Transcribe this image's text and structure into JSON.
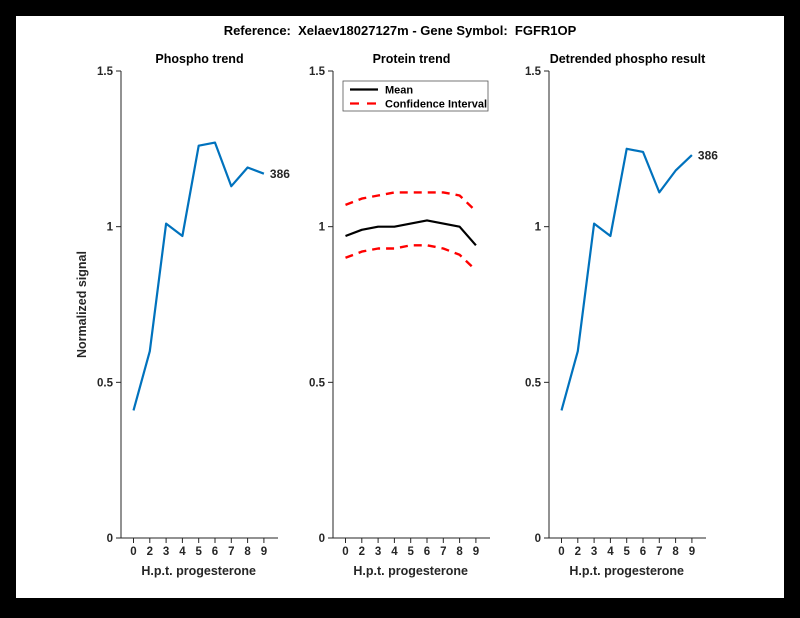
{
  "header": {
    "title": "Reference:  Xelaev18027127m - Gene Symbol:  FGFR1OP"
  },
  "styles": {
    "background": "#ffffff",
    "frame_border": "#000000",
    "accent_blue": "#0072BD",
    "ci_red": "#FF0000",
    "axis_color": "#262626"
  },
  "chart_data": [
    {
      "type": "line",
      "title": "Phospho trend",
      "xlabel": "H.p.t. progesterone",
      "ylabel": "Normalized signal",
      "x_tick_labels": [
        "0",
        "2",
        "3",
        "4",
        "5",
        "6",
        "7",
        "8",
        "9"
      ],
      "y_tick_labels": [
        "0",
        "0.5",
        "1",
        "1.5"
      ],
      "y_tick_values": [
        0,
        0.5,
        1,
        1.5
      ],
      "ylim": [
        0,
        1.5
      ],
      "grid": false,
      "series": [
        {
          "name": "phospho-signal",
          "color": "#0072BD",
          "style": "solid",
          "width": 2.2,
          "values": [
            0.41,
            0.6,
            1.01,
            0.97,
            1.26,
            1.27,
            1.13,
            1.19,
            1.17
          ]
        }
      ],
      "annotation": {
        "text": "386",
        "at_index": 8
      }
    },
    {
      "type": "line",
      "title": "Protein trend",
      "xlabel": "H.p.t. progesterone",
      "ylabel": "",
      "x_tick_labels": [
        "0",
        "2",
        "3",
        "4",
        "5",
        "6",
        "7",
        "8",
        "9"
      ],
      "y_tick_labels": [
        "0",
        "0.5",
        "1",
        "1.5"
      ],
      "y_tick_values": [
        0,
        0.5,
        1,
        1.5
      ],
      "ylim": [
        0,
        1.5
      ],
      "grid": false,
      "legend": {
        "position": "top-left",
        "entries": [
          {
            "label": "Mean",
            "color": "#000000",
            "style": "solid"
          },
          {
            "label": "Confidence Interval",
            "color": "#FF0000",
            "style": "dashed"
          }
        ]
      },
      "series": [
        {
          "name": "ci-upper",
          "color": "#FF0000",
          "style": "dashed",
          "width": 2.4,
          "values": [
            1.07,
            1.09,
            1.1,
            1.11,
            1.11,
            1.11,
            1.11,
            1.1,
            1.05
          ]
        },
        {
          "name": "ci-lower",
          "color": "#FF0000",
          "style": "dashed",
          "width": 2.4,
          "values": [
            0.9,
            0.92,
            0.93,
            0.93,
            0.94,
            0.94,
            0.93,
            0.91,
            0.86
          ]
        },
        {
          "name": "mean",
          "color": "#000000",
          "style": "solid",
          "width": 2.2,
          "values": [
            0.97,
            0.99,
            1.0,
            1.0,
            1.01,
            1.02,
            1.01,
            1.0,
            0.94
          ]
        }
      ]
    },
    {
      "type": "line",
      "title": "Detrended phospho result",
      "xlabel": "H.p.t. progesterone",
      "ylabel": "",
      "x_tick_labels": [
        "0",
        "2",
        "3",
        "4",
        "5",
        "6",
        "7",
        "8",
        "9"
      ],
      "y_tick_labels": [
        "0",
        "0.5",
        "1",
        "1.5"
      ],
      "y_tick_values": [
        0,
        0.5,
        1,
        1.5
      ],
      "ylim": [
        0,
        1.5
      ],
      "grid": false,
      "series": [
        {
          "name": "detrended-phospho-signal",
          "color": "#0072BD",
          "style": "solid",
          "width": 2.2,
          "values": [
            0.41,
            0.6,
            1.01,
            0.97,
            1.25,
            1.24,
            1.11,
            1.18,
            1.23
          ]
        }
      ],
      "annotation": {
        "text": "386",
        "at_index": 8
      }
    }
  ]
}
